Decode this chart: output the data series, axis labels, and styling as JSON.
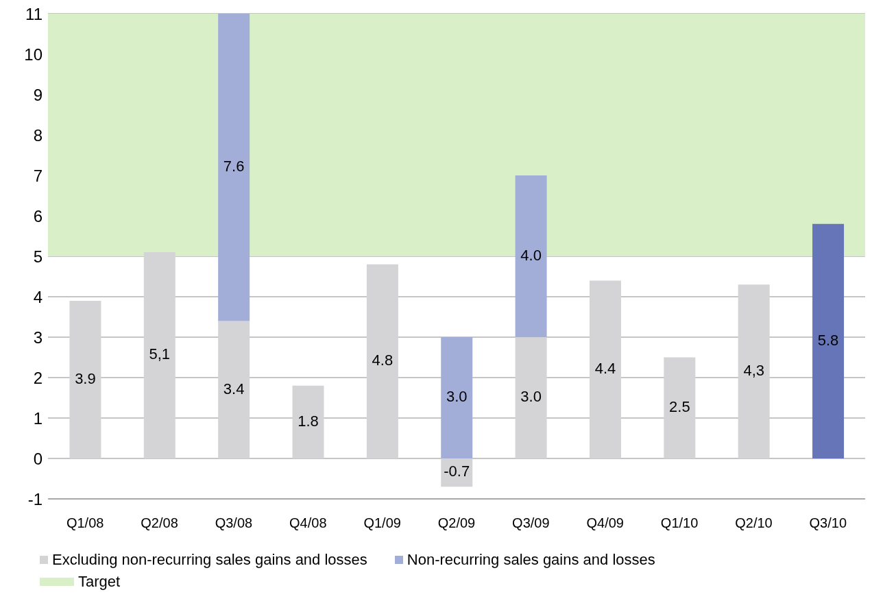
{
  "chart_data": {
    "type": "bar",
    "stacked": true,
    "categories": [
      "Q1/08",
      "Q2/08",
      "Q3/08",
      "Q4/08",
      "Q1/09",
      "Q2/09",
      "Q3/09",
      "Q4/09",
      "Q1/10",
      "Q2/10",
      "Q3/10"
    ],
    "series": [
      {
        "name": "Excluding non-recurring sales gains and losses",
        "color": "#d4d4d6",
        "colors": [
          "#d4d4d6",
          "#d4d4d6",
          "#d4d4d6",
          "#d4d4d6",
          "#d4d4d6",
          "#d4d4d6",
          "#d4d4d6",
          "#d4d4d6",
          "#d4d4d6",
          "#d4d4d6",
          "#6675b8"
        ],
        "values": [
          3.9,
          5.1,
          3.4,
          1.8,
          4.8,
          -0.7,
          3.0,
          4.4,
          2.5,
          4.3,
          5.8
        ],
        "value_labels": [
          "3.9",
          "5,1",
          "3.4",
          "1.8",
          "4.8",
          "-0.7",
          "3.0",
          "4.4",
          "2.5",
          "4,3",
          "5.8"
        ]
      },
      {
        "name": "Non-recurring sales gains and losses",
        "color": "#a3aed8",
        "values": [
          null,
          null,
          7.6,
          null,
          null,
          3.0,
          4.0,
          null,
          null,
          null,
          null
        ],
        "value_labels": [
          null,
          null,
          "7.6",
          null,
          null,
          "3.0",
          "4.0",
          null,
          null,
          null,
          null
        ]
      }
    ],
    "bands": [
      {
        "axis": "y",
        "from": 5,
        "to": 11,
        "label": "Target",
        "color": "#d9efc8"
      }
    ],
    "ylim": [
      -1,
      11
    ],
    "yticks": [
      -1,
      0,
      1,
      2,
      3,
      4,
      5,
      6,
      7,
      8,
      9,
      10,
      11
    ],
    "grid": "y",
    "legend": "bottom"
  }
}
